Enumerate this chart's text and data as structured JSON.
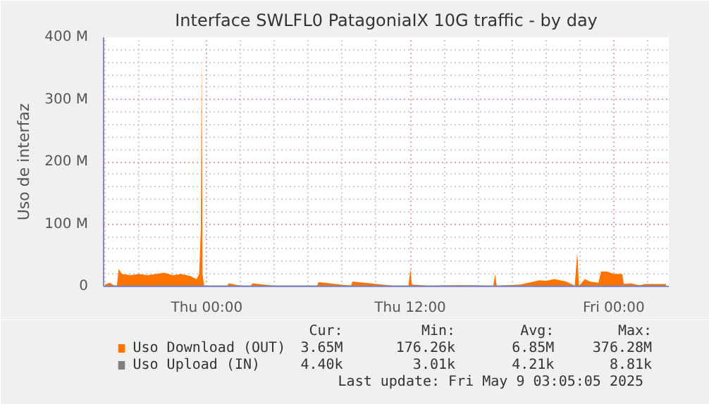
{
  "chart_data": {
    "type": "area",
    "title": "Interface SWLFL0 PatagoniaIX 10G traffic - by day",
    "ylabel": "Uso de interfaz",
    "xlim": [
      "2025-05-07T17:55",
      "2025-05-09T03:15"
    ],
    "xticks": [
      {
        "value": "2025-05-08T00:00",
        "label": "Thu 00:00"
      },
      {
        "value": "2025-05-08T12:00",
        "label": "Thu 12:00"
      },
      {
        "value": "2025-05-09T00:00",
        "label": "Fri 00:00"
      }
    ],
    "ylim": [
      0,
      400
    ],
    "yticks": [
      {
        "value": 0,
        "label": "0"
      },
      {
        "value": 100,
        "label": "100 M"
      },
      {
        "value": 200,
        "label": "200 M"
      },
      {
        "value": 300,
        "label": "300 M"
      },
      {
        "value": 400,
        "label": "400 M"
      }
    ],
    "grid": true,
    "legend": "bottom left",
    "x": [
      "2025-05-07T18:00",
      "2025-05-07T18:12",
      "2025-05-07T18:18",
      "2025-05-07T18:30",
      "2025-05-07T18:42",
      "2025-05-07T18:48",
      "2025-05-07T19:00",
      "2025-05-07T19:30",
      "2025-05-07T20:00",
      "2025-05-07T20:30",
      "2025-05-07T21:00",
      "2025-05-07T21:30",
      "2025-05-07T22:00",
      "2025-05-07T22:30",
      "2025-05-07T23:00",
      "2025-05-07T23:24",
      "2025-05-07T23:33",
      "2025-05-07T23:39",
      "2025-05-07T23:42",
      "2025-05-07T23:45",
      "2025-05-07T23:51",
      "2025-05-08T00:30",
      "2025-05-08T01:12",
      "2025-05-08T01:18",
      "2025-05-08T02:00",
      "2025-05-08T02:36",
      "2025-05-08T02:42",
      "2025-05-08T04:00",
      "2025-05-08T06:30",
      "2025-05-08T06:36",
      "2025-05-08T08:30",
      "2025-05-08T08:36",
      "2025-05-08T11:00",
      "2025-05-08T11:54",
      "2025-05-08T12:00",
      "2025-05-08T12:06",
      "2025-05-08T13:00",
      "2025-05-08T15:00",
      "2025-05-08T16:54",
      "2025-05-08T17:00",
      "2025-05-08T17:06",
      "2025-05-08T18:30",
      "2025-05-08T19:18",
      "2025-05-08T19:36",
      "2025-05-08T20:00",
      "2025-05-08T20:30",
      "2025-05-08T21:12",
      "2025-05-08T21:42",
      "2025-05-08T21:51",
      "2025-05-08T21:57",
      "2025-05-08T22:18",
      "2025-05-08T22:36",
      "2025-05-08T23:06",
      "2025-05-08T23:15",
      "2025-05-08T23:36",
      "2025-05-09T00:00",
      "2025-05-09T00:30",
      "2025-05-09T00:36",
      "2025-05-09T01:00",
      "2025-05-09T01:30",
      "2025-05-09T01:54",
      "2025-05-09T02:30",
      "2025-05-09T03:05"
    ],
    "series": [
      {
        "name": "Uso Download (OUT)",
        "color": "#ff7300",
        "values": [
          3,
          5,
          6,
          2,
          1,
          28,
          20,
          18,
          20,
          18,
          20,
          22,
          18,
          20,
          17,
          12,
          20,
          90,
          369,
          20,
          1,
          1,
          1,
          5,
          1,
          1,
          5,
          1,
          1,
          7,
          1,
          8,
          1,
          1,
          28,
          3,
          1,
          2,
          1,
          20,
          1,
          3,
          8,
          10,
          9,
          12,
          8,
          1,
          55,
          1,
          12,
          8,
          6,
          24,
          24,
          20,
          20,
          4,
          5,
          2,
          4,
          4,
          4
        ]
      },
      {
        "name": "Uso Upload (IN)",
        "type": "line",
        "color": "#7f7f7f",
        "values": [
          null,
          null,
          null,
          null,
          null,
          null,
          null,
          null,
          null,
          null,
          null,
          null,
          null,
          null,
          null,
          null,
          null,
          null,
          null,
          null,
          null,
          null,
          null,
          null,
          null,
          null,
          null,
          null,
          null,
          null,
          null,
          null,
          null,
          null,
          null,
          null,
          null,
          null,
          null,
          null,
          null,
          null,
          null,
          null,
          null,
          null,
          null,
          null,
          null,
          null,
          null,
          null,
          null,
          null,
          null,
          null,
          null,
          null,
          null,
          null,
          null,
          null,
          null
        ]
      }
    ],
    "annotations": [
      "Cur:",
      "Min:",
      "Avg:",
      "Max:",
      "3.65M",
      "176.26k",
      "6.85M",
      "376.28M",
      "4.40k",
      "3.01k",
      "4.21k",
      "8.81k",
      "Last update: Fri May  9 03:05:05 2025"
    ]
  }
}
